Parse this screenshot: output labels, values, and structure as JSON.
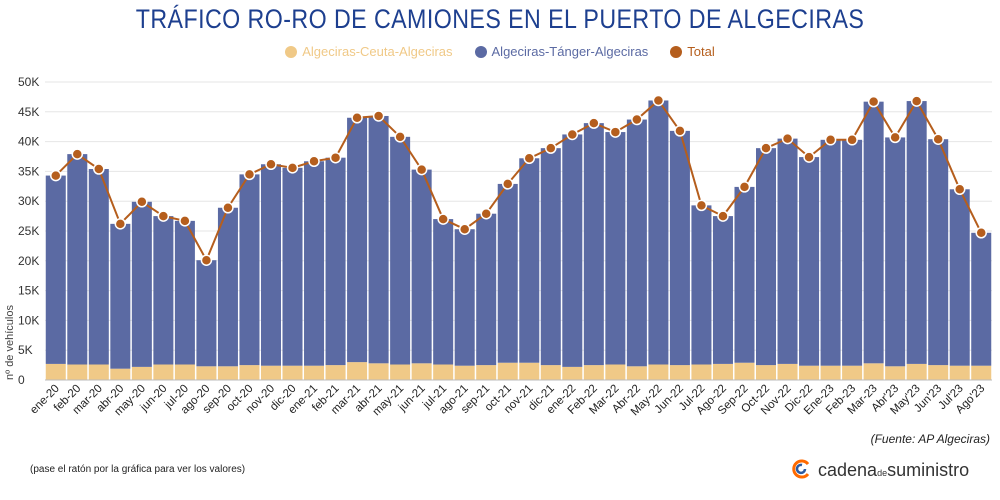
{
  "colors": {
    "ceuta": "#f0c987",
    "tanger": "#5b6aa3",
    "total": "#b55e1d",
    "grid": "#e6e6e6",
    "title": "#1d3f8f",
    "brand": "#ff6a00"
  },
  "header": {
    "title": "TRÁFICO RO-RO DE CAMIONES EN EL PUERTO DE ALGECIRAS"
  },
  "legend": {
    "ceuta": "Algeciras-Ceuta-Algeciras",
    "tanger": "Algeciras-Tánger-Algeciras",
    "total": "Total"
  },
  "footer": {
    "source": "(Fuente: AP Algeciras)",
    "hint": "(pase el ratón por la gráfica para ver los valores)"
  },
  "brand": {
    "name_a": "cadena",
    "name_de": "de",
    "name_b": "suministro"
  },
  "chart_data": {
    "type": "bar",
    "stacked": true,
    "title": "TRÁFICO RO-RO DE CAMIONES EN EL PUERTO DE ALGECIRAS",
    "xlabel": "",
    "ylabel": "nº de vehículos",
    "ylim": [
      0,
      50000
    ],
    "yticks": [
      0,
      5000,
      10000,
      15000,
      20000,
      25000,
      30000,
      35000,
      40000,
      45000,
      50000
    ],
    "ytick_labels": [
      "0",
      "5K",
      "10K",
      "15K",
      "20K",
      "25K",
      "30K",
      "35K",
      "40K",
      "45K",
      "50K"
    ],
    "categories": [
      "ene-20",
      "feb-20",
      "mar-20",
      "abr-20",
      "may-20",
      "jun-20",
      "jul-20",
      "ago-20",
      "sep-20",
      "oct-20",
      "nov-20",
      "dic-20",
      "ene-21",
      "feb-21",
      "mar-21",
      "abr-21",
      "may-21",
      "jun-21",
      "jul-21",
      "ago-21",
      "sep-21",
      "oct-21",
      "nov-21",
      "dic-21",
      "ene-22",
      "Feb-22",
      "Mar-22",
      "Abr-22",
      "May-22",
      "Jun-22",
      "Jul-22",
      "Ago-22",
      "Sep-22",
      "Oct-22",
      "Nov-22",
      "Dic-22",
      "Ene-23",
      "Feb-23",
      "Mar-23",
      "Abr'23",
      "May'23",
      "Jun'23",
      "Jul'23",
      "Ago'23"
    ],
    "series": [
      {
        "name": "Algeciras-Ceuta-Algeciras",
        "values": [
          2700,
          2600,
          2600,
          1900,
          2200,
          2600,
          2600,
          2300,
          2300,
          2500,
          2400,
          2400,
          2400,
          2500,
          3000,
          2800,
          2600,
          2800,
          2600,
          2400,
          2500,
          2900,
          2900,
          2500,
          2200,
          2500,
          2600,
          2300,
          2600,
          2500,
          2600,
          2700,
          2900,
          2500,
          2700,
          2400,
          2400,
          2400,
          2800,
          2300,
          2700,
          2500,
          2400,
          2400
        ]
      },
      {
        "name": "Algeciras-Tánger-Algeciras",
        "values": [
          31600,
          35300,
          32800,
          24300,
          27700,
          24900,
          24100,
          17800,
          26600,
          32000,
          33800,
          33200,
          34300,
          34800,
          41000,
          41500,
          38200,
          32500,
          24400,
          22900,
          25400,
          30000,
          34300,
          36400,
          39000,
          40600,
          39000,
          41400,
          44300,
          39300,
          26700,
          24800,
          29500,
          36400,
          37800,
          35000,
          37900,
          37900,
          43900,
          38400,
          44100,
          37900,
          29600,
          22300
        ]
      },
      {
        "name": "Total",
        "values": [
          34300,
          37900,
          35400,
          26200,
          29900,
          27500,
          26700,
          20100,
          28900,
          34500,
          36200,
          35600,
          36700,
          37300,
          44000,
          44300,
          40800,
          35300,
          27000,
          25300,
          27900,
          32900,
          37200,
          38900,
          41200,
          43100,
          41600,
          43700,
          46900,
          41800,
          29300,
          27500,
          32400,
          38900,
          40500,
          37400,
          40300,
          40300,
          46700,
          40700,
          46800,
          40400,
          32000,
          24700
        ]
      }
    ]
  }
}
